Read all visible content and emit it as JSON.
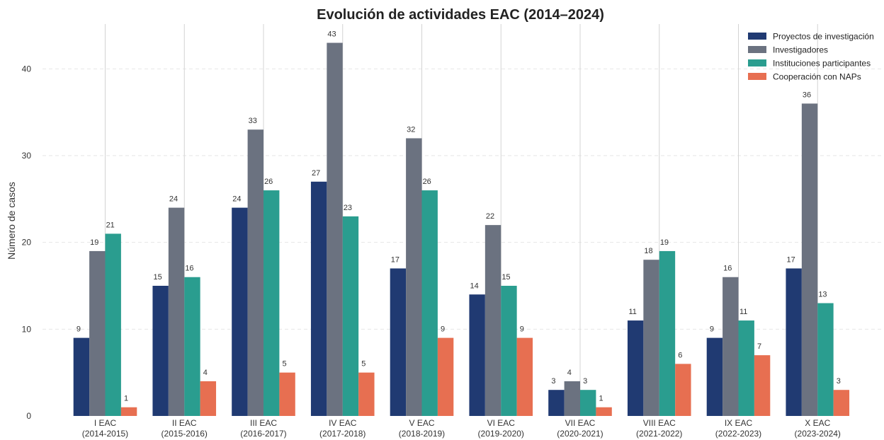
{
  "chart_data": {
    "type": "bar",
    "title": "Evolución de actividades EAC (2014–2024)",
    "xlabel": "",
    "ylabel": "Número de casos",
    "ylim": [
      0,
      45
    ],
    "yticks": [
      0,
      10,
      20,
      30,
      40
    ],
    "grid": "y-dashed",
    "legend_position": "top-right",
    "categories": [
      [
        "I EAC",
        "(2014-2015)"
      ],
      [
        "II EAC",
        "(2015-2016)"
      ],
      [
        "III EAC",
        "(2016-2017)"
      ],
      [
        "IV EAC",
        "(2017-2018)"
      ],
      [
        "V EAC",
        "(2018-2019)"
      ],
      [
        "VI EAC",
        "(2019-2020)"
      ],
      [
        "VII EAC",
        "(2020-2021)"
      ],
      [
        "VIII EAC",
        "(2021-2022)"
      ],
      [
        "IX EAC",
        "(2022-2023)"
      ],
      [
        "X EAC",
        "(2023-2024)"
      ]
    ],
    "series": [
      {
        "name": "Proyectos de investigación",
        "color": "#203a72",
        "values": [
          9,
          15,
          24,
          27,
          17,
          14,
          3,
          11,
          9,
          17
        ]
      },
      {
        "name": "Investigadores",
        "color": "#6b7280",
        "values": [
          19,
          24,
          33,
          43,
          32,
          22,
          4,
          18,
          16,
          36
        ]
      },
      {
        "name": "Instituciones participantes",
        "color": "#2a9d8f",
        "values": [
          21,
          16,
          26,
          23,
          26,
          15,
          3,
          19,
          11,
          13
        ]
      },
      {
        "name": "Cooperación con NAPs",
        "color": "#e76f51",
        "values": [
          1,
          4,
          5,
          5,
          9,
          9,
          1,
          6,
          7,
          3
        ]
      }
    ]
  }
}
